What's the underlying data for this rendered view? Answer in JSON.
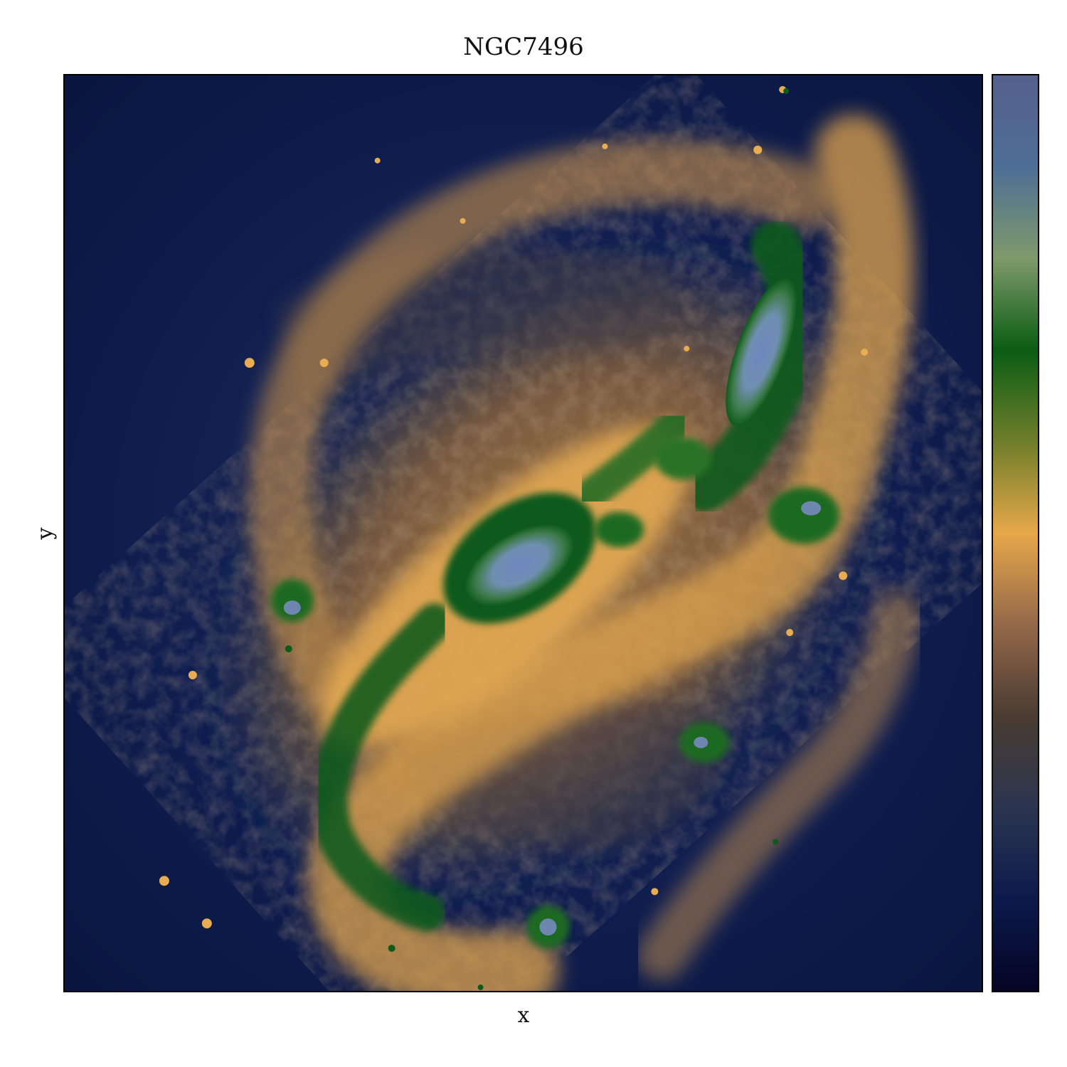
{
  "figure": {
    "title": "NGC7496",
    "xlabel": "x",
    "ylabel": "y"
  },
  "colorbar": {
    "stops": [
      "#050424",
      "#0c1a4c",
      "#2b3550",
      "#4a3c32",
      "#94684a",
      "#e6a84a",
      "#6f7d2a",
      "#0a5c14",
      "#7e9a6a",
      "#4e6e96",
      "#55608c"
    ]
  },
  "colors": {
    "background": "#0d1a4a",
    "disk": "#8a6a46",
    "arm": "#e0a44e",
    "green": "#0d5a1a",
    "core": "#6f8fb8"
  }
}
